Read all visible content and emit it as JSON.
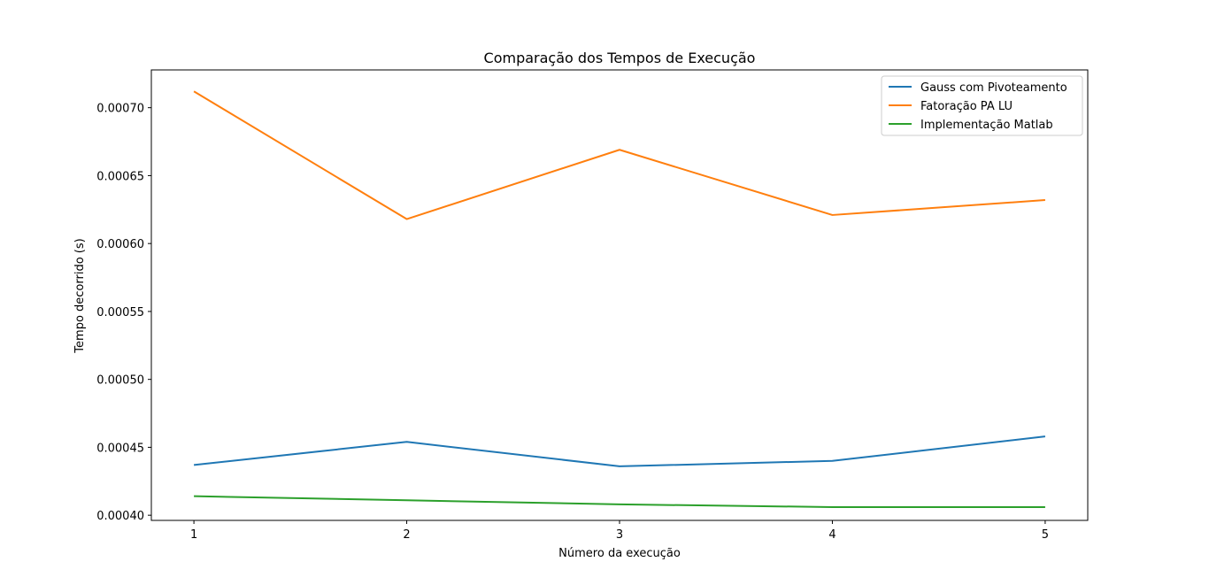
{
  "chart_data": {
    "type": "line",
    "title": "Comparação dos Tempos de Execução",
    "xlabel": "Número da execução",
    "ylabel": "Tempo decorrido (s)",
    "x": [
      1,
      2,
      3,
      4,
      5
    ],
    "xticks": [
      "1",
      "2",
      "3",
      "4",
      "5"
    ],
    "yticks": [
      "0.00040",
      "0.00045",
      "0.00050",
      "0.00055",
      "0.00060",
      "0.00065",
      "0.00070"
    ],
    "ytick_values": [
      0.0004,
      0.00045,
      0.0005,
      0.00055,
      0.0006,
      0.00065,
      0.0007
    ],
    "xlim": [
      0.8,
      5.2
    ],
    "ylim": [
      0.0003962,
      0.0007278
    ],
    "grid": false,
    "legend_position": "top-right",
    "series": [
      {
        "name": "Gauss com Pivoteamento",
        "color": "#1f77b4",
        "values": [
          0.000437,
          0.000454,
          0.000436,
          0.00044,
          0.000458
        ]
      },
      {
        "name": "Fatoração PA LU",
        "color": "#ff7f0e",
        "values": [
          0.000712,
          0.000618,
          0.000669,
          0.000621,
          0.000632
        ]
      },
      {
        "name": "Implementação Matlab",
        "color": "#2ca02c",
        "values": [
          0.000414,
          0.000411,
          0.000408,
          0.000406,
          0.000406
        ]
      }
    ]
  }
}
